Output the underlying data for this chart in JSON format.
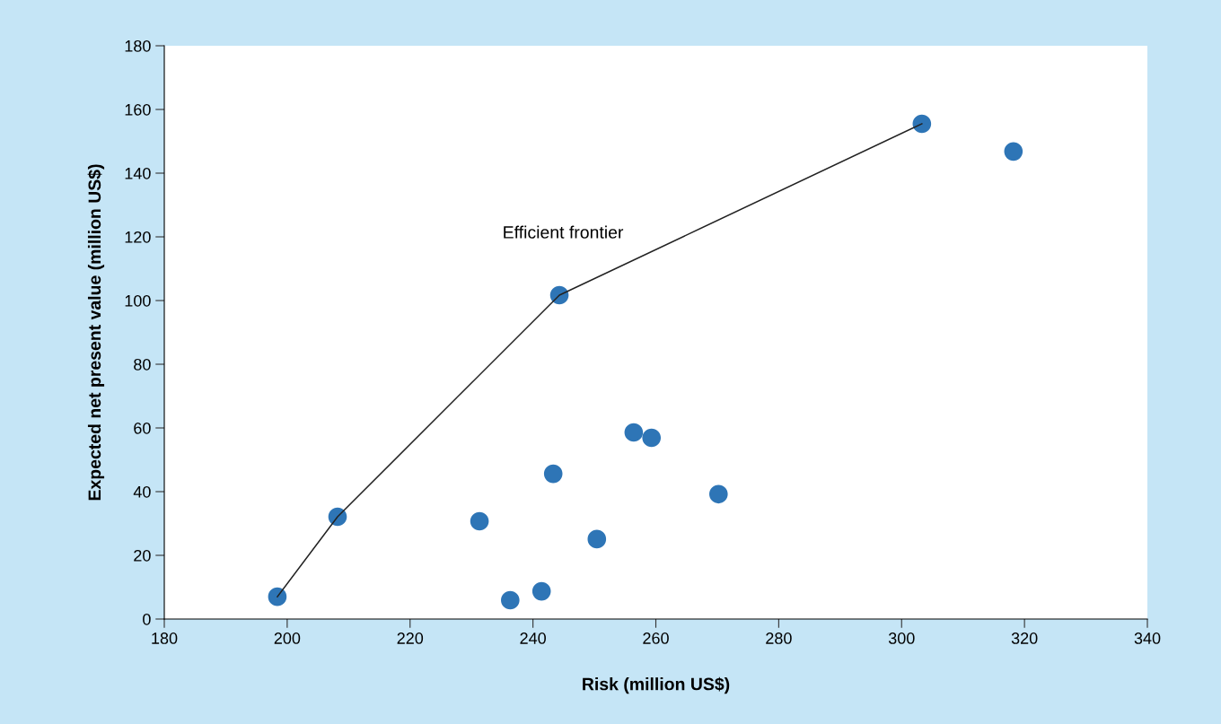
{
  "chart_data": {
    "type": "scatter",
    "xlabel": "Risk (million US$)",
    "ylabel": "Expected net present value (million US$)",
    "xlim": [
      180,
      340
    ],
    "xticks": [
      180,
      200,
      220,
      240,
      260,
      280,
      300,
      320,
      340
    ],
    "ylim": [
      0,
      180
    ],
    "yticks": [
      0,
      20,
      40,
      60,
      80,
      100,
      120,
      140,
      160,
      180
    ],
    "grid": false,
    "marker": "circle",
    "annotations": [
      "Efficient frontier"
    ],
    "series": [
      {
        "color": "#2e75b6",
        "x": [
          198.4,
          208.2,
          231.3,
          236.3,
          241.4,
          243.3,
          244.3,
          250.4,
          256.4,
          259.3,
          270.2,
          303.3,
          318.2
        ],
        "values": [
          7.0,
          32.1,
          30.7,
          5.9,
          8.7,
          45.6,
          101.7,
          25.1,
          58.6,
          56.9,
          39.2,
          155.5,
          146.8
        ]
      },
      {
        "type": "line",
        "color": "#222222",
        "line_style": "solid",
        "marker": "none",
        "x": [
          198.4,
          208.2,
          244.3,
          303.3
        ],
        "values": [
          7.0,
          32.1,
          101.7,
          155.5
        ]
      }
    ]
  }
}
